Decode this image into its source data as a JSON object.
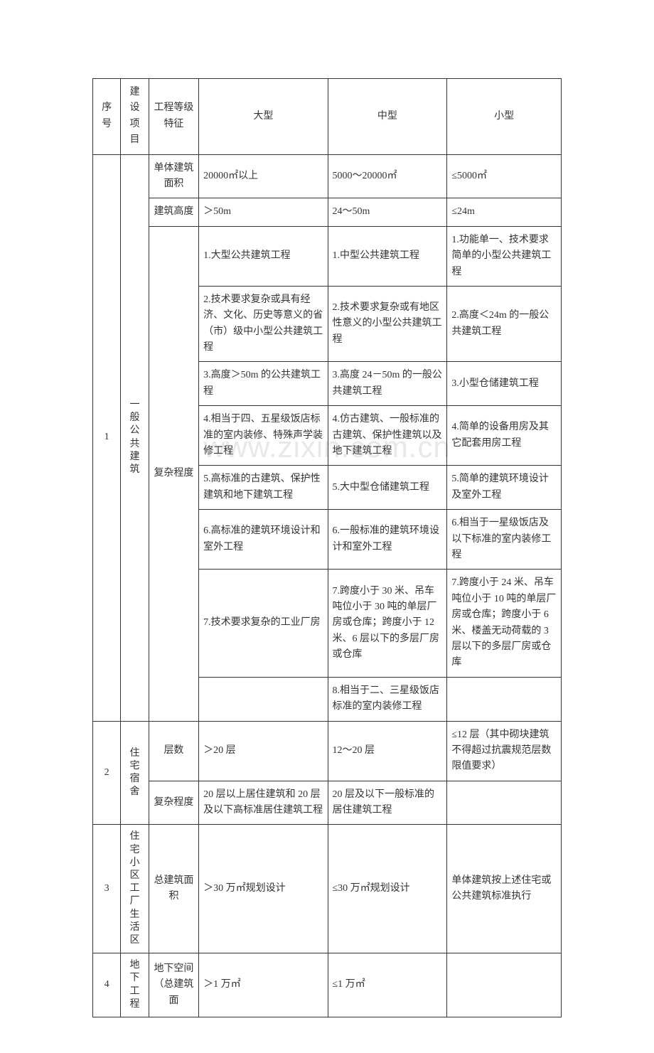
{
  "watermark": "www.zixin.com.cn",
  "headers": {
    "seq": "序号",
    "project": "建设项目",
    "characteristic": "工程等级特征",
    "large": "大型",
    "medium": "中型",
    "small": "小型"
  },
  "rows": {
    "r1": {
      "seq": "1",
      "project": "一般公共建筑",
      "char1": "单体建筑面积",
      "area_l": "20000㎡以上",
      "area_m": "5000～20000㎡",
      "area_s": "≤5000㎡",
      "char2": "建筑高度",
      "height_l": "＞50m",
      "height_m": "24～50m",
      "height_s": "≤24m",
      "char3": "复杂程度",
      "c1_l": "1.大型公共建筑工程",
      "c1_m": "1.中型公共建筑工程",
      "c1_s": "1.功能单一、技术要求简单的小型公共建筑工程",
      "c2_l": "2.技术要求复杂或具有经济、文化、历史等意义的省（市）级中小型公共建筑工程",
      "c2_m": "2.技术要求复杂或有地区性意义的小型公共建筑工程",
      "c2_s": "2.高度＜24m 的一般公共建筑工程",
      "c3_l": "3.高度＞50m 的公共建筑工程",
      "c3_m": "3.高度 24－50m 的一般公共建筑工程",
      "c3_s": "3.小型仓储建筑工程",
      "c4_l": "4.相当于四、五星级饭店标准的室内装修、特殊声学装修工程",
      "c4_m": "4.仿古建筑、一般标准的古建筑、保护性建筑以及地下建筑工程",
      "c4_s": "4.简单的设备用房及其它配套用房工程",
      "c5_l": "5.高标准的古建筑、保护性建筑和地下建筑工程",
      "c5_m": "5.大中型仓储建筑工程",
      "c5_s": "5.简单的建筑环境设计及室外工程",
      "c6_l": "6.高标准的建筑环境设计和室外工程",
      "c6_m": "6.一般标准的建筑环境设计和室外工程",
      "c6_s": "6.相当于一星级饭店及以下标准的室内装修工程",
      "c7_l": "7.技术要求复杂的工业厂房",
      "c7_m": "7.跨度小于 30 米、吊车吨位小于 30 吨的单层厂房或仓库；跨度小于 12米、6 层以下的多层厂房或仓库",
      "c7_s": "7.跨度小于 24 米、吊车吨位小于 10 吨的单层厂房或仓库；跨度小于 6 米、楼盖无动荷载的 3 层以下的多层厂房或仓库",
      "c8_m": "8.相当于二、三星级饭店标准的室内装修工程"
    },
    "r2": {
      "seq": "2",
      "project": "住宅宿舍",
      "char1": "层数",
      "floor_l": "＞20 层",
      "floor_m": "12～20 层",
      "floor_s": "≤12 层（其中砌块建筑不得超过抗震规范层数限值要求）",
      "char2": "复杂程度",
      "comp_l": "20 层以上居住建筑和 20 层及以下高标准居住建筑工程",
      "comp_m": "20 层及以下一般标准的居住建筑工程",
      "comp_s": ""
    },
    "r3": {
      "seq": "3",
      "project": "住宅小区工厂生活区",
      "char": "总建筑面积",
      "area_l": "＞30 万㎡规划设计",
      "area_m": "≤30 万㎡规划设计",
      "area_s": "单体建筑按上述住宅或公共建筑标准执行"
    },
    "r4": {
      "seq": "4",
      "project": "地下工程",
      "char": "地下空间（总建筑面",
      "area_l": "＞1 万㎡",
      "area_m": "≤1 万㎡",
      "area_s": ""
    }
  }
}
